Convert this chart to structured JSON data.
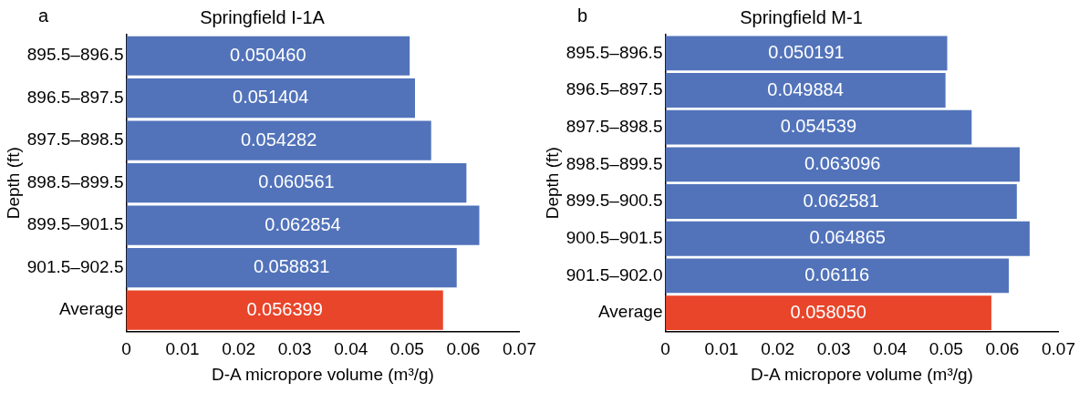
{
  "chart_data": [
    {
      "type": "bar",
      "orientation": "horizontal",
      "title": "Springfield I-1A",
      "annotations": [
        "a"
      ],
      "xlabel": "D-A micropore volume (m³/g)",
      "ylabel": "Depth (ft)",
      "categories": [
        "895.5–896.5",
        "896.5–897.5",
        "897.5–898.5",
        "898.5–899.5",
        "899.5–901.5",
        "901.5–902.5",
        "Average"
      ],
      "values": [
        0.05046,
        0.051404,
        0.054282,
        0.060561,
        0.062854,
        0.058831,
        0.056399
      ],
      "value_labels": [
        "0.050460",
        "0.051404",
        "0.054282",
        "0.060561",
        "0.062854",
        "0.058831",
        "0.056399"
      ],
      "colors": [
        "#5273ba",
        "#5273ba",
        "#5273ba",
        "#5273ba",
        "#5273ba",
        "#5273ba",
        "#e8452a"
      ],
      "xlim": [
        0,
        0.07
      ],
      "xticks": [
        0,
        0.01,
        0.02,
        0.03,
        0.04,
        0.05,
        0.06,
        0.07
      ],
      "grid": false,
      "legend": false
    },
    {
      "type": "bar",
      "orientation": "horizontal",
      "title": "Springfield M-1",
      "annotations": [
        "b"
      ],
      "xlabel": "D-A micropore volume (m³/g)",
      "ylabel": "Depth (ft)",
      "categories": [
        "895.5–896.5",
        "896.5–897.5",
        "897.5–898.5",
        "898.5–899.5",
        "899.5–900.5",
        "900.5–901.5",
        "901.5–902.0",
        "Average"
      ],
      "values": [
        0.050191,
        0.049884,
        0.054539,
        0.063096,
        0.062581,
        0.064865,
        0.06116,
        0.05805
      ],
      "value_labels": [
        "0.050191",
        "0.049884",
        "0.054539",
        "0.063096",
        "0.062581",
        "0.064865",
        "0.06116",
        "0.058050"
      ],
      "colors": [
        "#5273ba",
        "#5273ba",
        "#5273ba",
        "#5273ba",
        "#5273ba",
        "#5273ba",
        "#5273ba",
        "#e8452a"
      ],
      "xlim": [
        0,
        0.07
      ],
      "xticks": [
        0,
        0.01,
        0.02,
        0.03,
        0.04,
        0.05,
        0.06,
        0.07
      ],
      "grid": false,
      "legend": false
    }
  ]
}
